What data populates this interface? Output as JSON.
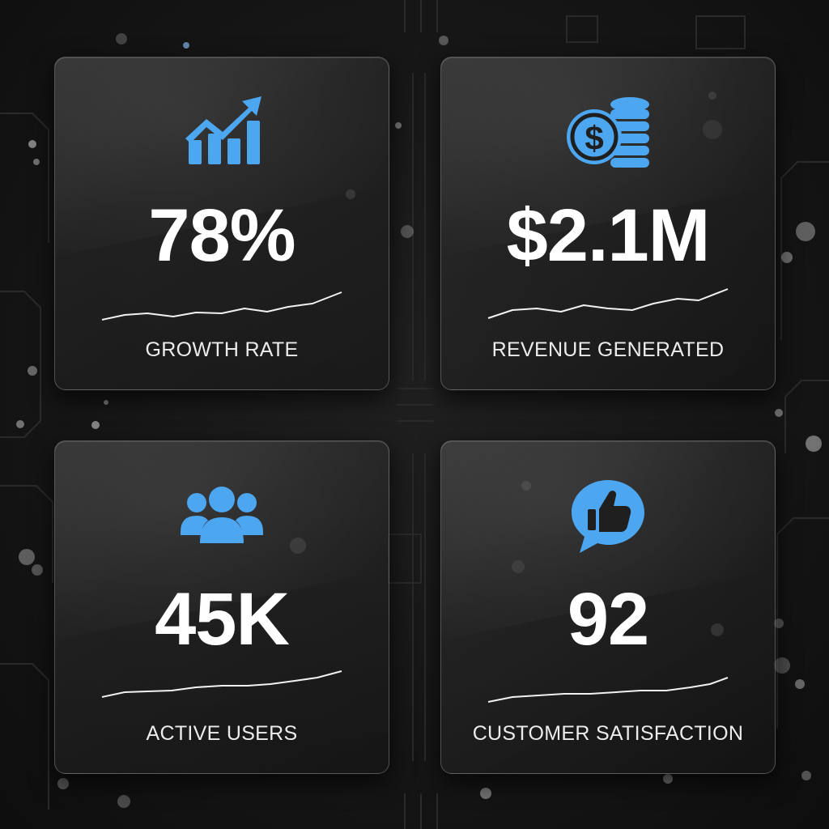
{
  "accent_color": "#4da6f0",
  "cards": [
    {
      "icon": "growth-chart-icon",
      "value": "78%",
      "label": "GROWTH RATE"
    },
    {
      "icon": "dollar-coins-icon",
      "value": "$2.1M",
      "label": "REVENUE GENERATED"
    },
    {
      "icon": "users-group-icon",
      "value": "45K",
      "label": "ACTIVE USERS"
    },
    {
      "icon": "thumbs-up-chat-icon",
      "value": "92",
      "label": "CUSTOMER SATISFACTION"
    }
  ]
}
